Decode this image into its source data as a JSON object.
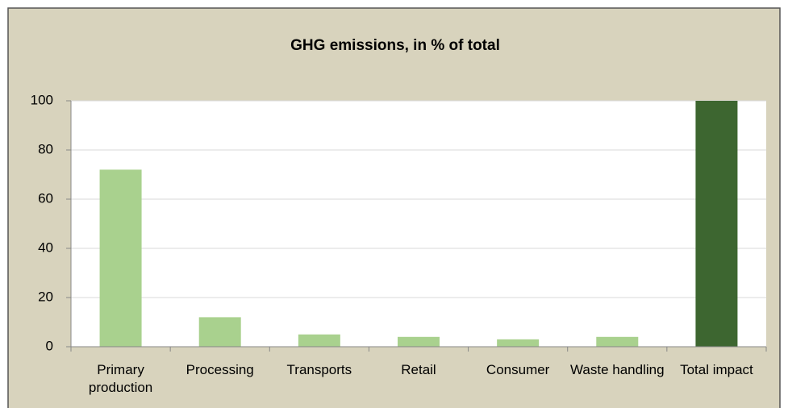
{
  "chart_data": {
    "type": "bar",
    "title": "GHG emissions, in % of total",
    "categories": [
      "Primary production",
      "Processing",
      "Transports",
      "Retail",
      "Consumer",
      "Waste handling",
      "Total impact"
    ],
    "values": [
      72,
      12,
      5,
      4,
      3,
      4,
      100
    ],
    "colors": [
      "#a9d18e",
      "#a9d18e",
      "#a9d18e",
      "#a9d18e",
      "#a9d18e",
      "#a9d18e",
      "#3d6630"
    ],
    "ylim": [
      0,
      100
    ],
    "yticks": [
      0,
      20,
      40,
      60,
      80,
      100
    ],
    "grid": true
  }
}
